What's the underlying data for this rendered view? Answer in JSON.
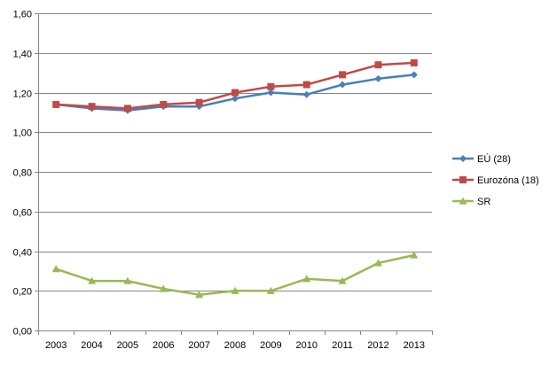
{
  "chart_data": {
    "type": "line",
    "title": "",
    "xlabel": "",
    "ylabel": "",
    "x": [
      "2003",
      "2004",
      "2005",
      "2006",
      "2007",
      "2008",
      "2009",
      "2010",
      "2011",
      "2012",
      "2013"
    ],
    "ylim": [
      0,
      1.6
    ],
    "yticks": [
      0,
      0.2,
      0.4,
      0.6,
      0.8,
      1.0,
      1.2,
      1.4,
      1.6
    ],
    "ytick_labels": [
      "0,00",
      "0,20",
      "0,40",
      "0,60",
      "0,80",
      "1,00",
      "1,20",
      "1,40",
      "1,60"
    ],
    "grid": "horizontal",
    "legend_position": "right",
    "series": [
      {
        "name": "EÚ (28)",
        "color": "#4a7ebb",
        "marker": "diamond",
        "values": [
          1.14,
          1.12,
          1.11,
          1.13,
          1.13,
          1.17,
          1.2,
          1.19,
          1.24,
          1.27,
          1.29
        ]
      },
      {
        "name": "Eurozóna (18)",
        "color": "#be4b48",
        "marker": "square",
        "values": [
          1.14,
          1.13,
          1.12,
          1.14,
          1.15,
          1.2,
          1.23,
          1.24,
          1.29,
          1.34,
          1.35
        ]
      },
      {
        "name": "SR",
        "color": "#98b954",
        "marker": "triangle",
        "values": [
          0.31,
          0.25,
          0.25,
          0.21,
          0.18,
          0.2,
          0.2,
          0.26,
          0.25,
          0.34,
          0.38
        ]
      }
    ]
  }
}
